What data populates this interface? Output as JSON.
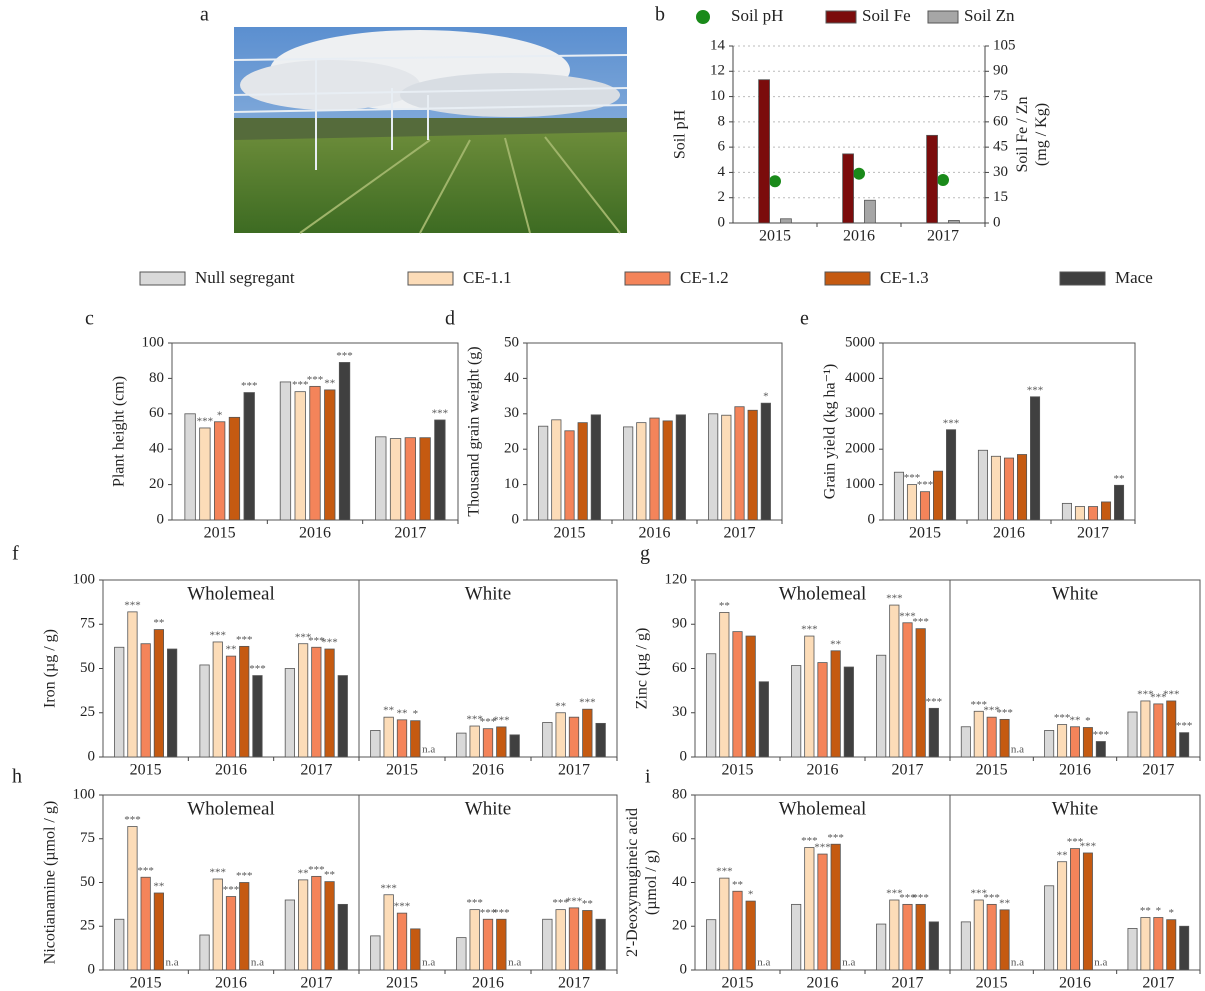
{
  "photo": {
    "label": "a"
  },
  "legend": [
    {
      "name": "Null segregant",
      "color": "#d9d9d9"
    },
    {
      "name": "CE-1.1",
      "color": "#fcdcb8"
    },
    {
      "name": "CE-1.2",
      "color": "#f4845a"
    },
    {
      "name": "CE-1.3",
      "color": "#c55a11"
    },
    {
      "name": "Mace",
      "color": "#404040"
    }
  ],
  "chart_data": [
    {
      "type": "bar",
      "label": "b",
      "categories": [
        "2015",
        "2016",
        "2017"
      ],
      "series": [
        {
          "name": "Soil pH",
          "color": "#1a8a1a",
          "type": "scatter",
          "values": [
            3.3,
            3.9,
            3.4
          ]
        },
        {
          "name": "Soil Fe",
          "color": "#7b0c0c",
          "axis": "y2",
          "values": [
            85,
            41,
            52
          ]
        },
        {
          "name": "Soil Zn",
          "color": "#a6a6a6",
          "axis": "y2",
          "values": [
            2.5,
            13.5,
            1.5
          ]
        }
      ],
      "ylabel": [
        "Soil pH"
      ],
      "y2label": [
        "Soil Fe / Zn",
        "(mg / Kg)"
      ],
      "ylim": [
        0,
        14
      ],
      "yticks": [
        0,
        2,
        4,
        6,
        8,
        10,
        12,
        14
      ],
      "y2lim": [
        0,
        105
      ],
      "y2ticks": [
        0,
        15,
        30,
        45,
        60,
        75,
        90,
        105
      ],
      "grid": true,
      "legend_position": "top"
    },
    {
      "type": "bar",
      "label": "c",
      "categories": [
        "2015",
        "2016",
        "2017"
      ],
      "ylabel": [
        "Plant height (cm)"
      ],
      "ylim": [
        0,
        100
      ],
      "yticks": [
        0,
        20,
        40,
        60,
        80,
        100
      ],
      "series": [
        {
          "values": [
            60,
            78,
            47
          ],
          "annotations": [
            null,
            null,
            null
          ]
        },
        {
          "values": [
            52,
            72.5,
            46
          ],
          "annotations": [
            "***",
            "***",
            null
          ]
        },
        {
          "values": [
            55.5,
            75.5,
            46.5
          ],
          "annotations": [
            "*",
            "***",
            null
          ]
        },
        {
          "values": [
            58,
            73.5,
            46.5
          ],
          "annotations": [
            null,
            "**",
            null
          ]
        },
        {
          "values": [
            72,
            89,
            56.5
          ],
          "annotations": [
            "***",
            "***",
            "***"
          ]
        }
      ]
    },
    {
      "type": "bar",
      "label": "d",
      "categories": [
        "2015",
        "2016",
        "2017"
      ],
      "ylabel": [
        "Thousand grain weight (g)"
      ],
      "ylim": [
        0,
        50
      ],
      "yticks": [
        0,
        10,
        20,
        30,
        40,
        50
      ],
      "series": [
        {
          "values": [
            26.5,
            26.3,
            30
          ],
          "annotations": [
            null,
            null,
            null
          ]
        },
        {
          "values": [
            28.3,
            27.5,
            29.6
          ],
          "annotations": [
            null,
            null,
            null
          ]
        },
        {
          "values": [
            25.2,
            28.8,
            32
          ],
          "annotations": [
            null,
            null,
            null
          ]
        },
        {
          "values": [
            27.5,
            28,
            31
          ],
          "annotations": [
            null,
            null,
            null
          ]
        },
        {
          "values": [
            29.7,
            29.7,
            33
          ],
          "annotations": [
            null,
            null,
            "*"
          ]
        }
      ]
    },
    {
      "type": "bar",
      "label": "e",
      "categories": [
        "2015",
        "2016",
        "2017"
      ],
      "ylabel": [
        "Grain yield (kg ha⁻¹)"
      ],
      "ylim": [
        0,
        5000
      ],
      "yticks": [
        0,
        1000,
        2000,
        3000,
        4000,
        5000
      ],
      "series": [
        {
          "values": [
            1350,
            1970,
            470
          ],
          "annotations": [
            null,
            null,
            null
          ]
        },
        {
          "values": [
            1000,
            1800,
            380
          ],
          "annotations": [
            "***",
            null,
            null
          ]
        },
        {
          "values": [
            800,
            1750,
            380
          ],
          "annotations": [
            "***",
            null,
            null
          ]
        },
        {
          "values": [
            1380,
            1850,
            510
          ],
          "annotations": [
            null,
            null,
            null
          ]
        },
        {
          "values": [
            2550,
            3480,
            980
          ],
          "annotations": [
            "***",
            "***",
            "**"
          ]
        }
      ]
    },
    {
      "type": "bar",
      "label": "f",
      "ylabel": [
        "Iron (µg / g)"
      ],
      "ylim": [
        0,
        100
      ],
      "yticks": [
        0,
        25,
        50,
        75,
        100
      ],
      "panels": [
        {
          "title": "Wholemeal",
          "categories": [
            "2015",
            "2016",
            "2017"
          ],
          "series": [
            {
              "values": [
                62,
                52,
                50
              ],
              "annotations": [
                null,
                null,
                null
              ]
            },
            {
              "values": [
                82,
                65,
                64
              ],
              "annotations": [
                "***",
                "***",
                "***"
              ]
            },
            {
              "values": [
                64,
                57,
                62
              ],
              "annotations": [
                null,
                "**",
                "***"
              ]
            },
            {
              "values": [
                72,
                62.5,
                61
              ],
              "annotations": [
                "**",
                "***",
                "***"
              ]
            },
            {
              "values": [
                61,
                46,
                46
              ],
              "annotations": [
                null,
                "***",
                null
              ]
            }
          ]
        },
        {
          "title": "White",
          "categories": [
            "2015",
            "2016",
            "2017"
          ],
          "series": [
            {
              "values": [
                15,
                13.5,
                19.5
              ],
              "annotations": [
                null,
                null,
                null
              ]
            },
            {
              "values": [
                22.5,
                17.5,
                25
              ],
              "annotations": [
                "**",
                "***",
                "**"
              ]
            },
            {
              "values": [
                21,
                16,
                22.5
              ],
              "annotations": [
                "**",
                "***",
                null
              ]
            },
            {
              "values": [
                20.5,
                17,
                27
              ],
              "annotations": [
                "*",
                "***",
                "***"
              ]
            },
            {
              "values": [
                null,
                12.5,
                19
              ],
              "annotations": [
                "n.a",
                null,
                null
              ]
            }
          ]
        }
      ]
    },
    {
      "type": "bar",
      "label": "g",
      "ylabel": [
        "Zinc (µg / g)"
      ],
      "ylim": [
        0,
        120
      ],
      "yticks": [
        0,
        30,
        60,
        90,
        120
      ],
      "panels": [
        {
          "title": "Wholemeal",
          "categories": [
            "2015",
            "2016",
            "2017"
          ],
          "series": [
            {
              "values": [
                70,
                62,
                69
              ],
              "annotations": [
                null,
                null,
                null
              ]
            },
            {
              "values": [
                98,
                82,
                103
              ],
              "annotations": [
                "**",
                "***",
                "***"
              ]
            },
            {
              "values": [
                85,
                64,
                91
              ],
              "annotations": [
                null,
                null,
                "***"
              ]
            },
            {
              "values": [
                82,
                72,
                87
              ],
              "annotations": [
                null,
                "**",
                "***"
              ]
            },
            {
              "values": [
                51,
                61,
                33
              ],
              "annotations": [
                null,
                null,
                "***"
              ]
            }
          ]
        },
        {
          "title": "White",
          "categories": [
            "2015",
            "2016",
            "2017"
          ],
          "series": [
            {
              "values": [
                20.5,
                18,
                30.5
              ],
              "annotations": [
                null,
                null,
                null
              ]
            },
            {
              "values": [
                31,
                22,
                38
              ],
              "annotations": [
                "***",
                "***",
                "***"
              ]
            },
            {
              "values": [
                27,
                20.5,
                36
              ],
              "annotations": [
                "***",
                "**",
                "***"
              ]
            },
            {
              "values": [
                25.5,
                20,
                38
              ],
              "annotations": [
                "***",
                "*",
                "***"
              ]
            },
            {
              "values": [
                null,
                10.5,
                16.5
              ],
              "annotations": [
                "n.a",
                "***",
                "***"
              ]
            }
          ]
        }
      ]
    },
    {
      "type": "bar",
      "label": "h",
      "ylabel": [
        "Nicotianamine (µmol / g)"
      ],
      "ylim": [
        0,
        100
      ],
      "yticks": [
        0,
        25,
        50,
        75,
        100
      ],
      "panels": [
        {
          "title": "Wholemeal",
          "categories": [
            "2015",
            "2016",
            "2017"
          ],
          "series": [
            {
              "values": [
                29,
                20,
                40
              ],
              "annotations": [
                null,
                null,
                null
              ]
            },
            {
              "values": [
                82,
                52,
                51.5
              ],
              "annotations": [
                "***",
                "***",
                "**"
              ]
            },
            {
              "values": [
                53,
                42,
                53.5
              ],
              "annotations": [
                "***",
                "***",
                "***"
              ]
            },
            {
              "values": [
                44,
                50,
                50.5
              ],
              "annotations": [
                "**",
                "***",
                "**"
              ]
            },
            {
              "values": [
                null,
                null,
                37.5
              ],
              "annotations": [
                "n.a",
                "n.a",
                null
              ]
            }
          ]
        },
        {
          "title": "White",
          "categories": [
            "2015",
            "2016",
            "2017"
          ],
          "series": [
            {
              "values": [
                19.5,
                18.5,
                29
              ],
              "annotations": [
                null,
                null,
                null
              ]
            },
            {
              "values": [
                43,
                34.5,
                34.5
              ],
              "annotations": [
                "***",
                "***",
                "***"
              ]
            },
            {
              "values": [
                32.5,
                29,
                35.5
              ],
              "annotations": [
                "***",
                "***",
                "***"
              ]
            },
            {
              "values": [
                23.5,
                29,
                34
              ],
              "annotations": [
                null,
                "***",
                "**"
              ]
            },
            {
              "values": [
                null,
                null,
                29
              ],
              "annotations": [
                "n.a",
                "n.a",
                null
              ]
            }
          ]
        }
      ]
    },
    {
      "type": "bar",
      "label": "i",
      "ylabel": [
        "2'-Deoxymugineic acid",
        "(µmol / g)"
      ],
      "ylim": [
        0,
        80
      ],
      "yticks": [
        0,
        20,
        40,
        60,
        80
      ],
      "panels": [
        {
          "title": "Wholemeal",
          "categories": [
            "2015",
            "2016",
            "2017"
          ],
          "series": [
            {
              "values": [
                23,
                30,
                21
              ],
              "annotations": [
                null,
                null,
                null
              ]
            },
            {
              "values": [
                42,
                56,
                32
              ],
              "annotations": [
                "***",
                "***",
                "***"
              ]
            },
            {
              "values": [
                36,
                53,
                30
              ],
              "annotations": [
                "**",
                "***",
                "***"
              ]
            },
            {
              "values": [
                31.5,
                57.5,
                30
              ],
              "annotations": [
                "*",
                "***",
                "***"
              ]
            },
            {
              "values": [
                null,
                null,
                22
              ],
              "annotations": [
                "n.a",
                "n.a",
                null
              ]
            }
          ]
        },
        {
          "title": "White",
          "categories": [
            "2015",
            "2016",
            "2017"
          ],
          "series": [
            {
              "values": [
                22,
                38.5,
                19
              ],
              "annotations": [
                null,
                null,
                null
              ]
            },
            {
              "values": [
                32,
                49.5,
                24
              ],
              "annotations": [
                "***",
                "**",
                "**"
              ]
            },
            {
              "values": [
                30,
                55.5,
                24
              ],
              "annotations": [
                "***",
                "***",
                "*"
              ]
            },
            {
              "values": [
                27.5,
                53.5,
                23
              ],
              "annotations": [
                "**",
                "***",
                "*"
              ]
            },
            {
              "values": [
                null,
                null,
                20
              ],
              "annotations": [
                "n.a",
                "n.a",
                null
              ]
            }
          ]
        }
      ]
    }
  ]
}
